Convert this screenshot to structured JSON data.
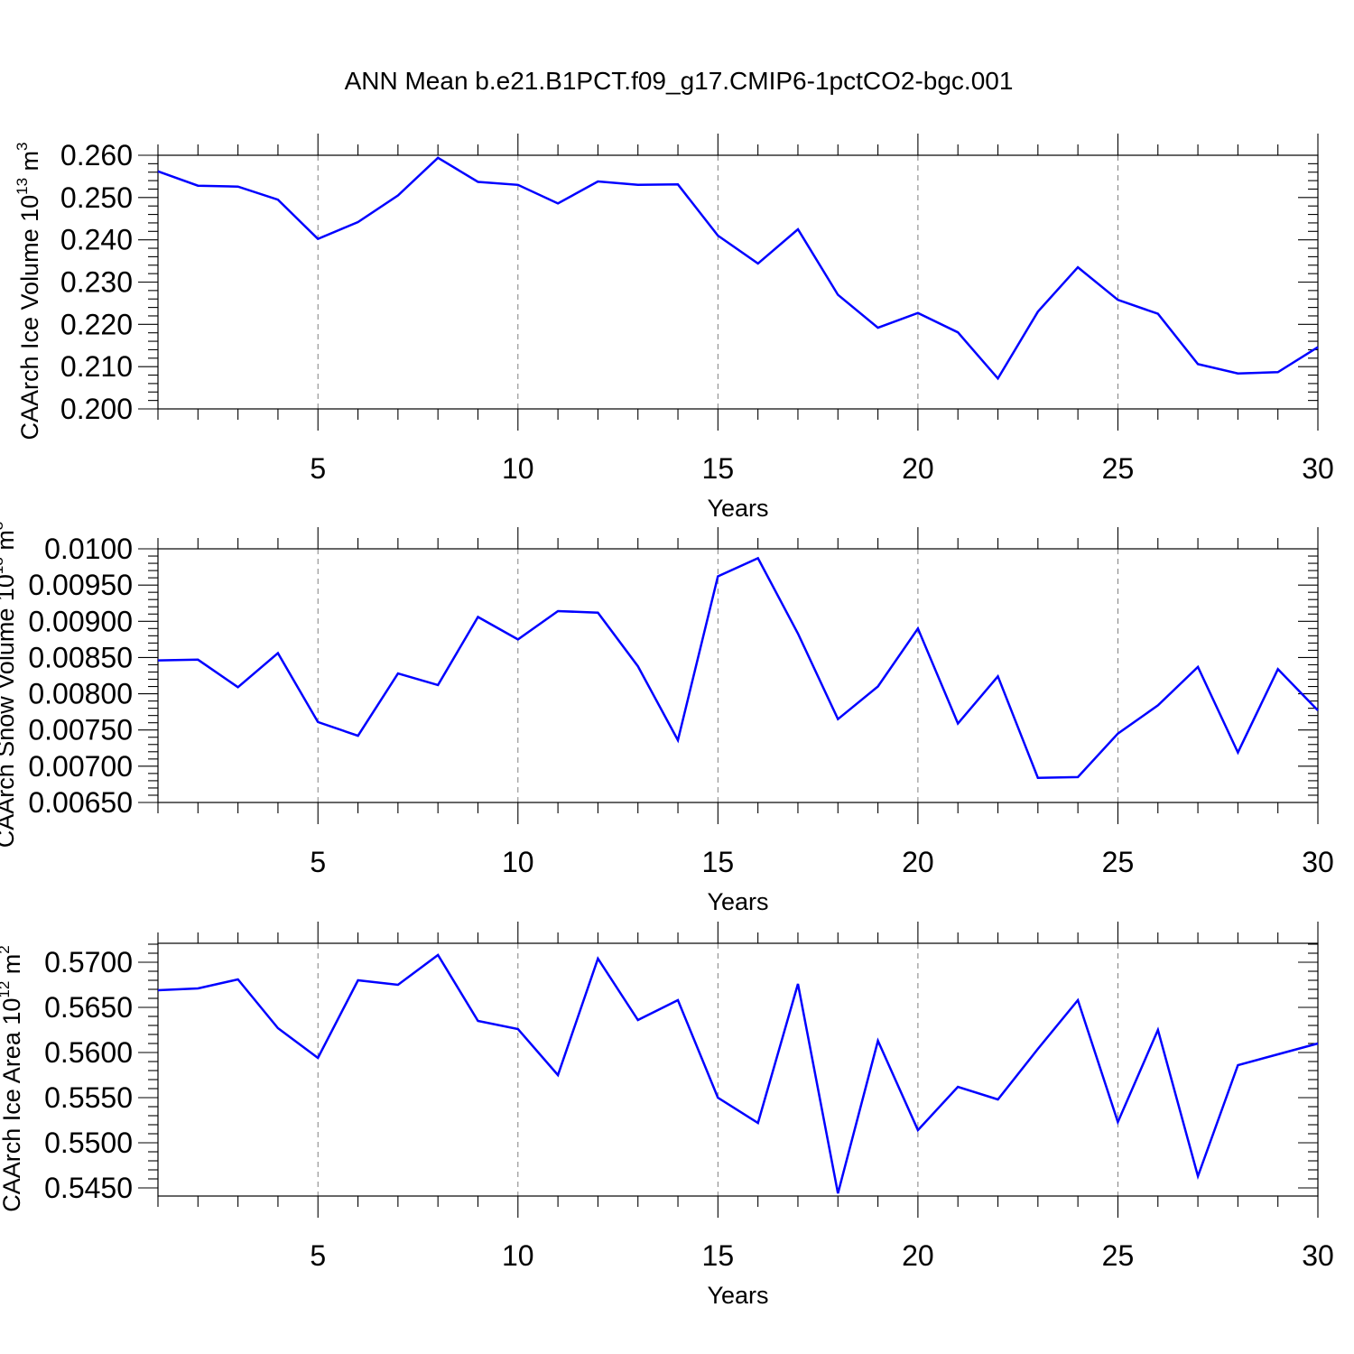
{
  "figure": {
    "title": "ANN Mean b.e21.B1PCT.f09_g17.CMIP6-1pctCO2-bgc.001"
  },
  "chart_data": [
    {
      "type": "line",
      "xlabel": "Years",
      "ylabel": {
        "text": "CAArch Ice Volume 10",
        "exp": "13",
        "unit": " m",
        "unit_exp": "3"
      },
      "xlim": [
        1,
        30
      ],
      "ylim": [
        0.2,
        0.26
      ],
      "xticks": [
        5,
        10,
        15,
        20,
        25,
        30
      ],
      "yticks": [
        "0.200",
        "0.210",
        "0.220",
        "0.230",
        "0.240",
        "0.250",
        "0.260"
      ],
      "grid": "x-dashed",
      "color": "#0000ff",
      "x": [
        1,
        2,
        3,
        4,
        5,
        6,
        7,
        8,
        9,
        10,
        11,
        12,
        13,
        14,
        15,
        16,
        17,
        18,
        19,
        20,
        21,
        22,
        23,
        24,
        25,
        26,
        27,
        28,
        29,
        30
      ],
      "values": [
        0.2562,
        0.2528,
        0.2526,
        0.2495,
        0.2402,
        0.2442,
        0.2505,
        0.2594,
        0.2537,
        0.253,
        0.2486,
        0.2538,
        0.253,
        0.2531,
        0.241,
        0.2344,
        0.2425,
        0.227,
        0.2192,
        0.2227,
        0.2181,
        0.2072,
        0.223,
        0.2335,
        0.2258,
        0.2225,
        0.2106,
        0.2084,
        0.2087,
        0.2146
      ]
    },
    {
      "type": "line",
      "xlabel": "Years",
      "ylabel": {
        "text": "CAArch Snow Volume 10",
        "exp": "13",
        "unit": " m",
        "unit_exp": "3"
      },
      "xlim": [
        1,
        30
      ],
      "ylim": [
        0.0065,
        0.01
      ],
      "xticks": [
        5,
        10,
        15,
        20,
        25,
        30
      ],
      "yticks": [
        "0.00650",
        "0.00700",
        "0.00750",
        "0.00800",
        "0.00850",
        "0.00900",
        "0.00950",
        "0.0100"
      ],
      "grid": "x-dashed",
      "color": "#0000ff",
      "x": [
        1,
        2,
        3,
        4,
        5,
        6,
        7,
        8,
        9,
        10,
        11,
        12,
        13,
        14,
        15,
        16,
        17,
        18,
        19,
        20,
        21,
        22,
        23,
        24,
        25,
        26,
        27,
        28,
        29,
        30
      ],
      "values": [
        0.00846,
        0.00847,
        0.00809,
        0.00856,
        0.00761,
        0.00742,
        0.00828,
        0.00812,
        0.00906,
        0.00875,
        0.00914,
        0.00912,
        0.00838,
        0.00736,
        0.00962,
        0.00987,
        0.00883,
        0.00765,
        0.0081,
        0.0089,
        0.00759,
        0.00824,
        0.00684,
        0.00685,
        0.00745,
        0.00784,
        0.00837,
        0.00719,
        0.00834,
        0.00777
      ]
    },
    {
      "type": "line",
      "xlabel": "Years",
      "ylabel": {
        "text": "CAArch Ice Area 10",
        "exp": "12",
        "unit": " m",
        "unit_exp": "2"
      },
      "xlim": [
        1,
        30
      ],
      "ylim": [
        0.544,
        0.572
      ],
      "xticks": [
        5,
        10,
        15,
        20,
        25,
        30
      ],
      "yticks": [
        "0.5450",
        "0.5500",
        "0.5550",
        "0.5600",
        "0.5650",
        "0.5700"
      ],
      "grid": "x-dashed",
      "color": "#0000ff",
      "x": [
        1,
        2,
        3,
        4,
        5,
        6,
        7,
        8,
        9,
        10,
        11,
        12,
        13,
        14,
        15,
        16,
        17,
        18,
        19,
        20,
        21,
        22,
        23,
        24,
        25,
        26,
        27,
        28,
        29,
        30
      ],
      "values": [
        0.5669,
        0.5671,
        0.5681,
        0.5627,
        0.5594,
        0.568,
        0.5675,
        0.5708,
        0.5635,
        0.5626,
        0.5575,
        0.5704,
        0.5636,
        0.5658,
        0.555,
        0.5522,
        0.5676,
        0.5444,
        0.5613,
        0.5514,
        0.5562,
        0.5548,
        0.5604,
        0.5658,
        0.5523,
        0.5625,
        0.5463,
        0.5586,
        0.5598,
        0.561
      ]
    }
  ]
}
